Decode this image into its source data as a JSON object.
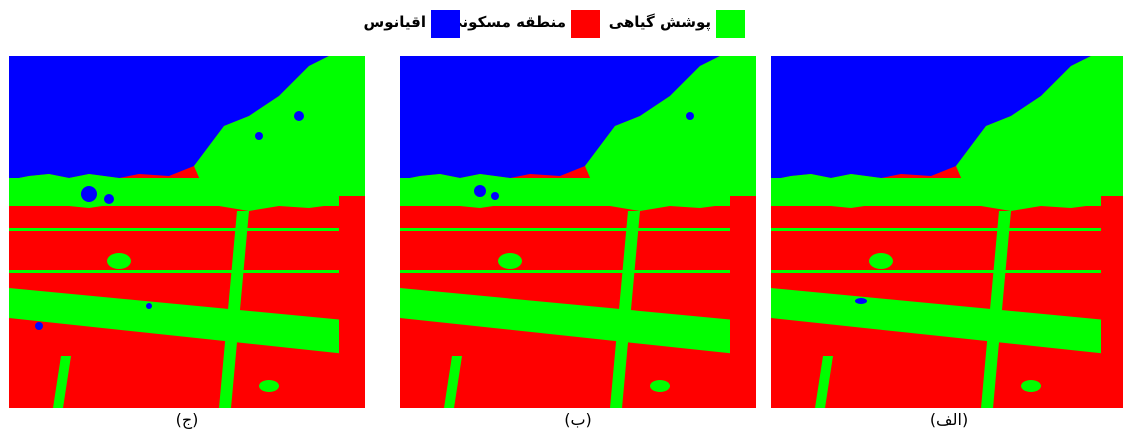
{
  "legend": {
    "items": [
      {
        "label": "پوشش گیاهی",
        "color": "#00ff00"
      },
      {
        "label": "منطقه مسکونی",
        "color": "#ff0000"
      },
      {
        "label": "اقیانوس",
        "color": "#0000ff"
      }
    ]
  },
  "panels": [
    {
      "caption": "(الف)"
    },
    {
      "caption": "(ب)"
    },
    {
      "caption": "(ج)"
    }
  ],
  "colors": {
    "vegetation": "#00ff00",
    "residential": "#ff0000",
    "ocean": "#0000ff"
  }
}
